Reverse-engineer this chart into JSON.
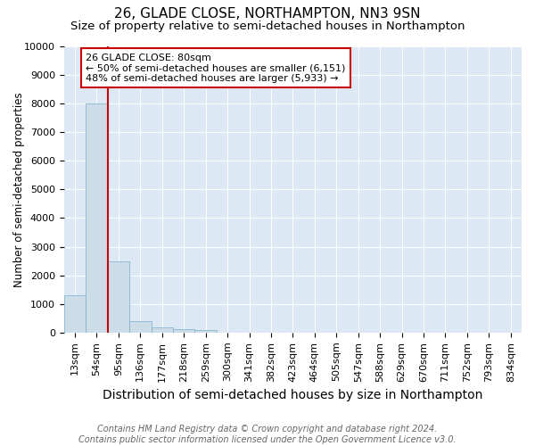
{
  "title": "26, GLADE CLOSE, NORTHAMPTON, NN3 9SN",
  "subtitle": "Size of property relative to semi-detached houses in Northampton",
  "xlabel": "Distribution of semi-detached houses by size in Northampton",
  "ylabel": "Number of semi-detached properties",
  "footer_line1": "Contains HM Land Registry data © Crown copyright and database right 2024.",
  "footer_line2": "Contains public sector information licensed under the Open Government Licence v3.0.",
  "bins": [
    "13sqm",
    "54sqm",
    "95sqm",
    "136sqm",
    "177sqm",
    "218sqm",
    "259sqm",
    "300sqm",
    "341sqm",
    "382sqm",
    "423sqm",
    "464sqm",
    "505sqm",
    "547sqm",
    "588sqm",
    "629sqm",
    "670sqm",
    "711sqm",
    "752sqm",
    "793sqm",
    "834sqm"
  ],
  "values": [
    1300,
    8000,
    2500,
    400,
    175,
    130,
    80,
    0,
    0,
    0,
    0,
    0,
    0,
    0,
    0,
    0,
    0,
    0,
    0,
    0,
    0
  ],
  "bar_color": "#ccdce8",
  "bar_edge_color": "#7aaec8",
  "vline_color": "#cc0000",
  "annotation_text": "26 GLADE CLOSE: 80sqm\n← 50% of semi-detached houses are smaller (6,151)\n48% of semi-detached houses are larger (5,933) →",
  "annotation_box_color": "#cc0000",
  "ylim": [
    0,
    10000
  ],
  "yticks": [
    0,
    1000,
    2000,
    3000,
    4000,
    5000,
    6000,
    7000,
    8000,
    9000,
    10000
  ],
  "background_color": "#dce8f4",
  "title_fontsize": 11,
  "subtitle_fontsize": 9.5,
  "xlabel_fontsize": 10,
  "ylabel_fontsize": 8.5,
  "tick_fontsize": 8,
  "footer_fontsize": 7
}
